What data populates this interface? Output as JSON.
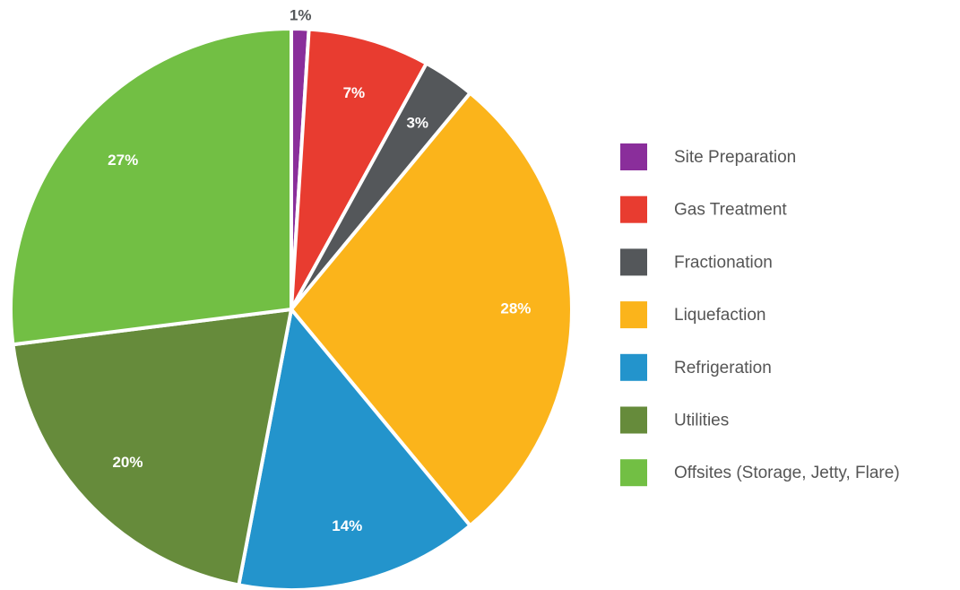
{
  "chart_data": {
    "type": "pie",
    "categories": [
      "Site Preparation",
      "Gas Treatment",
      "Fractionation",
      "Liquefaction",
      "Refrigeration",
      "Utilities",
      "Offsites (Storage, Jetty, Flare)"
    ],
    "values": [
      1,
      7,
      3,
      28,
      14,
      20,
      27
    ],
    "value_labels": [
      "1%",
      "7%",
      "3%",
      "28%",
      "14%",
      "20%",
      "27%"
    ],
    "colors": [
      "#8a2e9b",
      "#e83c30",
      "#54575a",
      "#fbb41b",
      "#2394cc",
      "#668b3b",
      "#72bf44"
    ],
    "legend": "right"
  }
}
